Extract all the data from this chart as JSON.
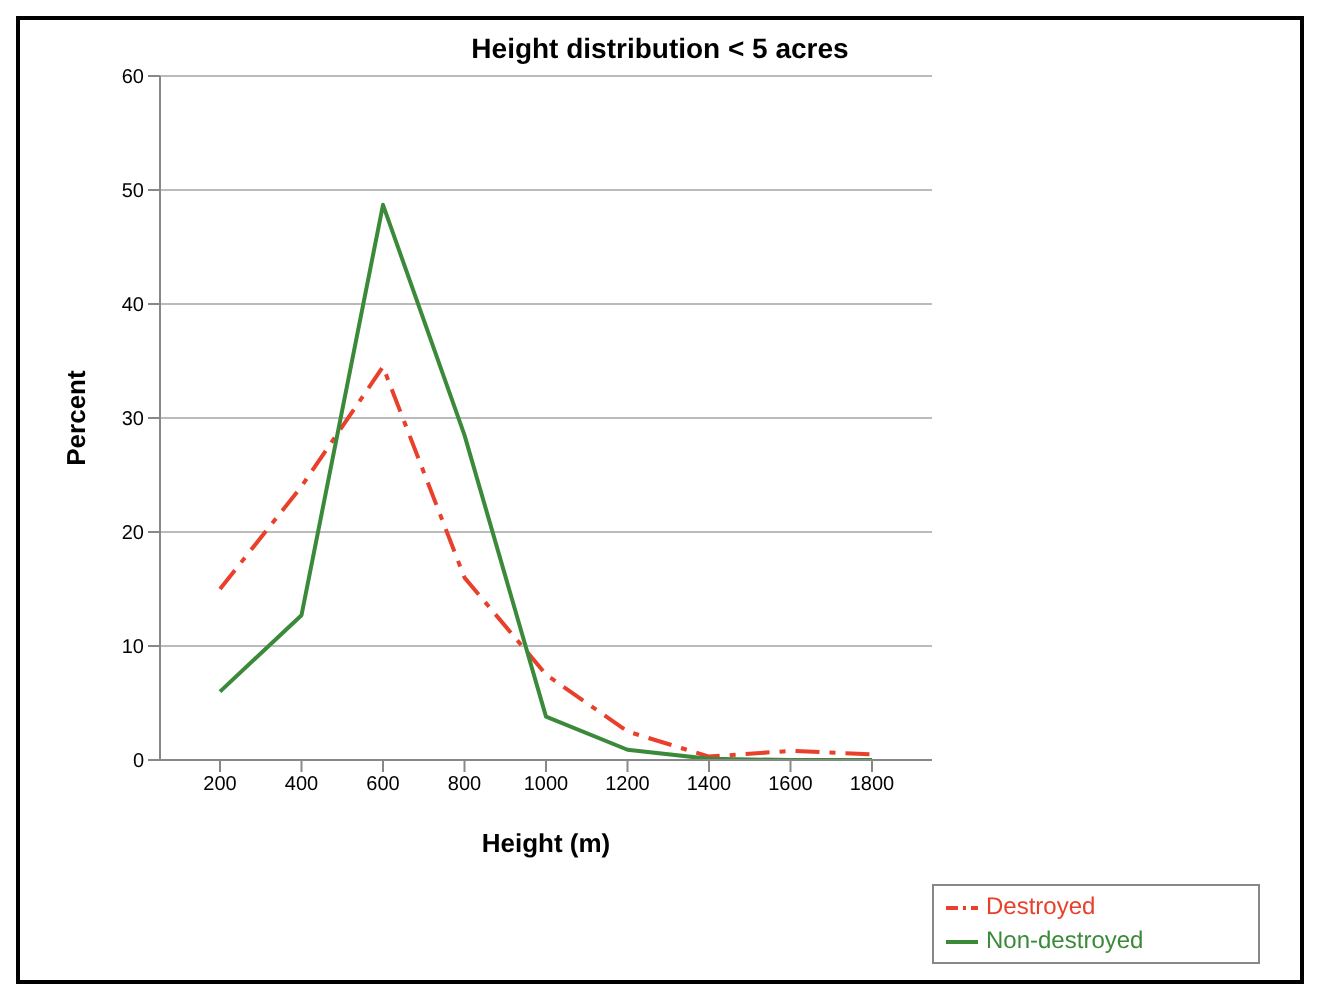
{
  "chart_data": {
    "type": "line",
    "title": "Height distribution < 5 acres",
    "xlabel": "Height  (m)",
    "ylabel": "Percent",
    "categories": [
      "200",
      "400",
      "600",
      "800",
      "1000",
      "1200",
      "1400",
      "1600",
      "1800"
    ],
    "series": [
      {
        "name": "Destroyed",
        "color": "#e8402a",
        "line_style": "dashed",
        "values": [
          15,
          24,
          34.5,
          16,
          7.5,
          2.5,
          0.3,
          0.8,
          0.5
        ]
      },
      {
        "name": "Non-destroyed",
        "color": "#3a8a3a",
        "line_style": "solid",
        "values": [
          6,
          12.7,
          48.7,
          28.5,
          3.8,
          0.9,
          0.1,
          0,
          0
        ]
      }
    ],
    "ylim": [
      0,
      60
    ],
    "yticks": [
      0,
      10,
      20,
      30,
      40,
      50,
      60
    ],
    "grid": "y",
    "legend": "bottom right",
    "marker": "none"
  }
}
